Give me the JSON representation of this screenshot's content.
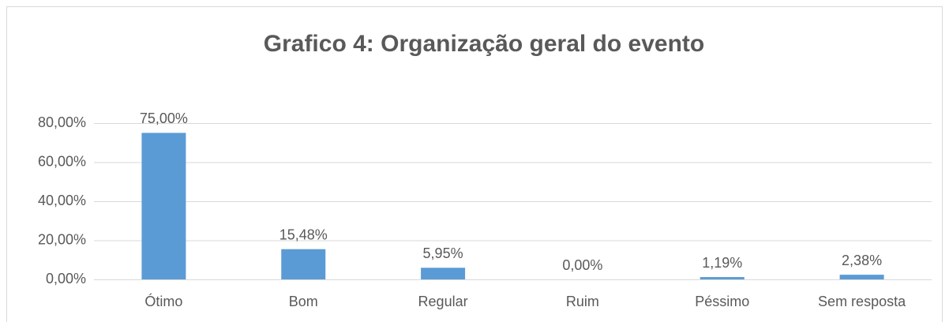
{
  "chart_data": {
    "type": "bar",
    "title": "Grafico 4: Organização geral do evento",
    "categories": [
      "Ótimo",
      "Bom",
      "Regular",
      "Ruim",
      "Péssimo",
      "Sem resposta"
    ],
    "values": [
      75,
      15.48,
      5.95,
      0,
      1.19,
      2.38
    ],
    "value_labels": [
      "75,00%",
      "15,48%",
      "5,95%",
      "0,00%",
      "1,19%",
      "2,38%"
    ],
    "color": "#5b9bd5",
    "ylim": [
      0,
      80
    ],
    "yticks": [
      {
        "value": 0,
        "label": "0,00%"
      },
      {
        "value": 20,
        "label": "20,00%"
      },
      {
        "value": 40,
        "label": "40,00%"
      },
      {
        "value": 60,
        "label": "60,00%"
      },
      {
        "value": 80,
        "label": "80,00%"
      }
    ],
    "grid": true
  }
}
